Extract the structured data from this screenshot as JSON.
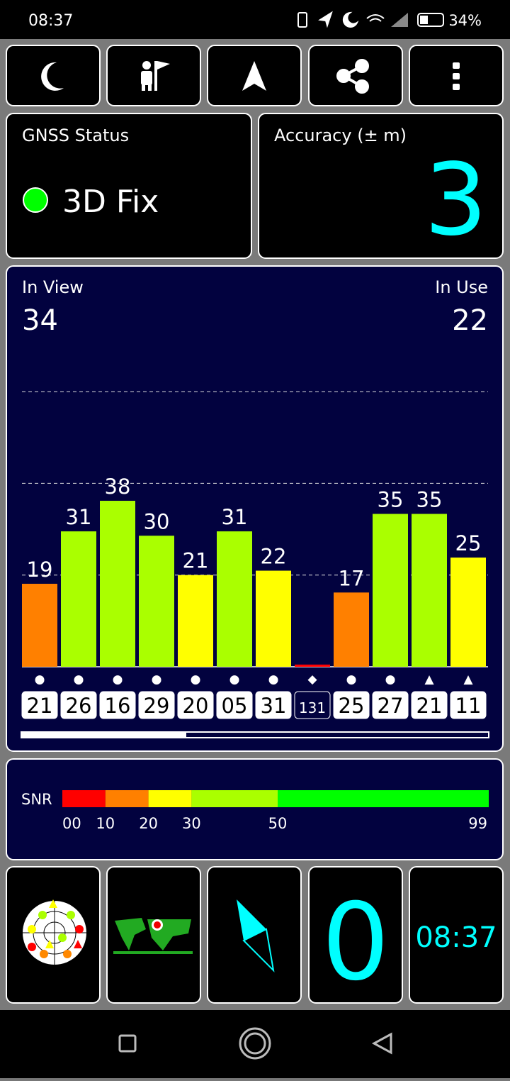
{
  "status_bar": {
    "time": "08:37",
    "battery": "34%"
  },
  "gnss_status": {
    "title": "GNSS Status",
    "fix": "3D Fix"
  },
  "accuracy": {
    "title": "Accuracy (± m)",
    "value": 3
  },
  "satellites": {
    "in_view_label": "In View",
    "in_view": 34,
    "in_use_label": "In Use",
    "in_use": 22
  },
  "chart_data": {
    "type": "bar",
    "categories": [
      "21",
      "26",
      "16",
      "29",
      "20",
      "05",
      "31",
      "131",
      "25",
      "27",
      "21",
      "11"
    ],
    "values": [
      19,
      31,
      38,
      30,
      21,
      31,
      22,
      0.5,
      17,
      35,
      35,
      25
    ],
    "value_labels": [
      "19",
      "31",
      "38",
      "30",
      "21",
      "31",
      "22",
      null,
      "17",
      "35",
      "35",
      "25"
    ],
    "markers": [
      "●",
      "●",
      "●",
      "●",
      "●",
      "●",
      "●",
      "◆",
      "●",
      "●",
      "▲",
      "▲"
    ],
    "ylim": [
      0,
      70
    ],
    "yticks": [
      21,
      42,
      63
    ],
    "grid": true
  },
  "snr_scale": {
    "label": "SNR",
    "ticks": [
      {
        "value": 0,
        "label": "00"
      },
      10,
      20,
      30,
      50,
      99
    ],
    "colors": [
      "#ff0000",
      "#ff8000",
      "#ffff00",
      "#aaff00",
      "#00ff00"
    ]
  },
  "tiles": {
    "speed": 0,
    "clock": "08:37"
  }
}
